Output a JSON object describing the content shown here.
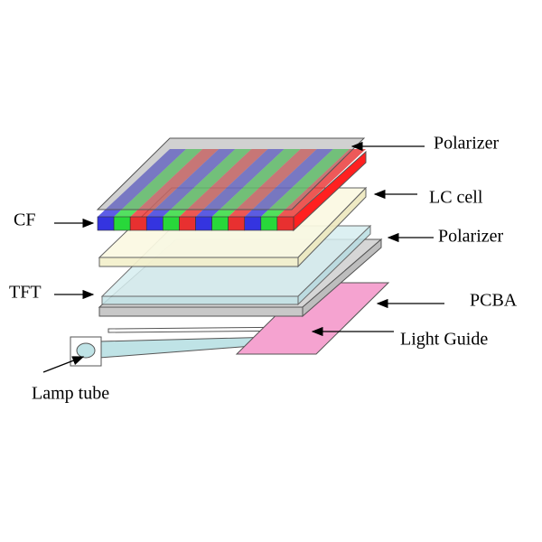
{
  "labels": {
    "polarizer_top": "Polarizer",
    "lc_cell": "LC cell",
    "polarizer_bottom": "Polarizer",
    "pcba": "PCBA",
    "light_guide": "Light Guide",
    "lamp_tube": "Lamp tube",
    "cf": "CF",
    "tft": "TFT"
  }
}
